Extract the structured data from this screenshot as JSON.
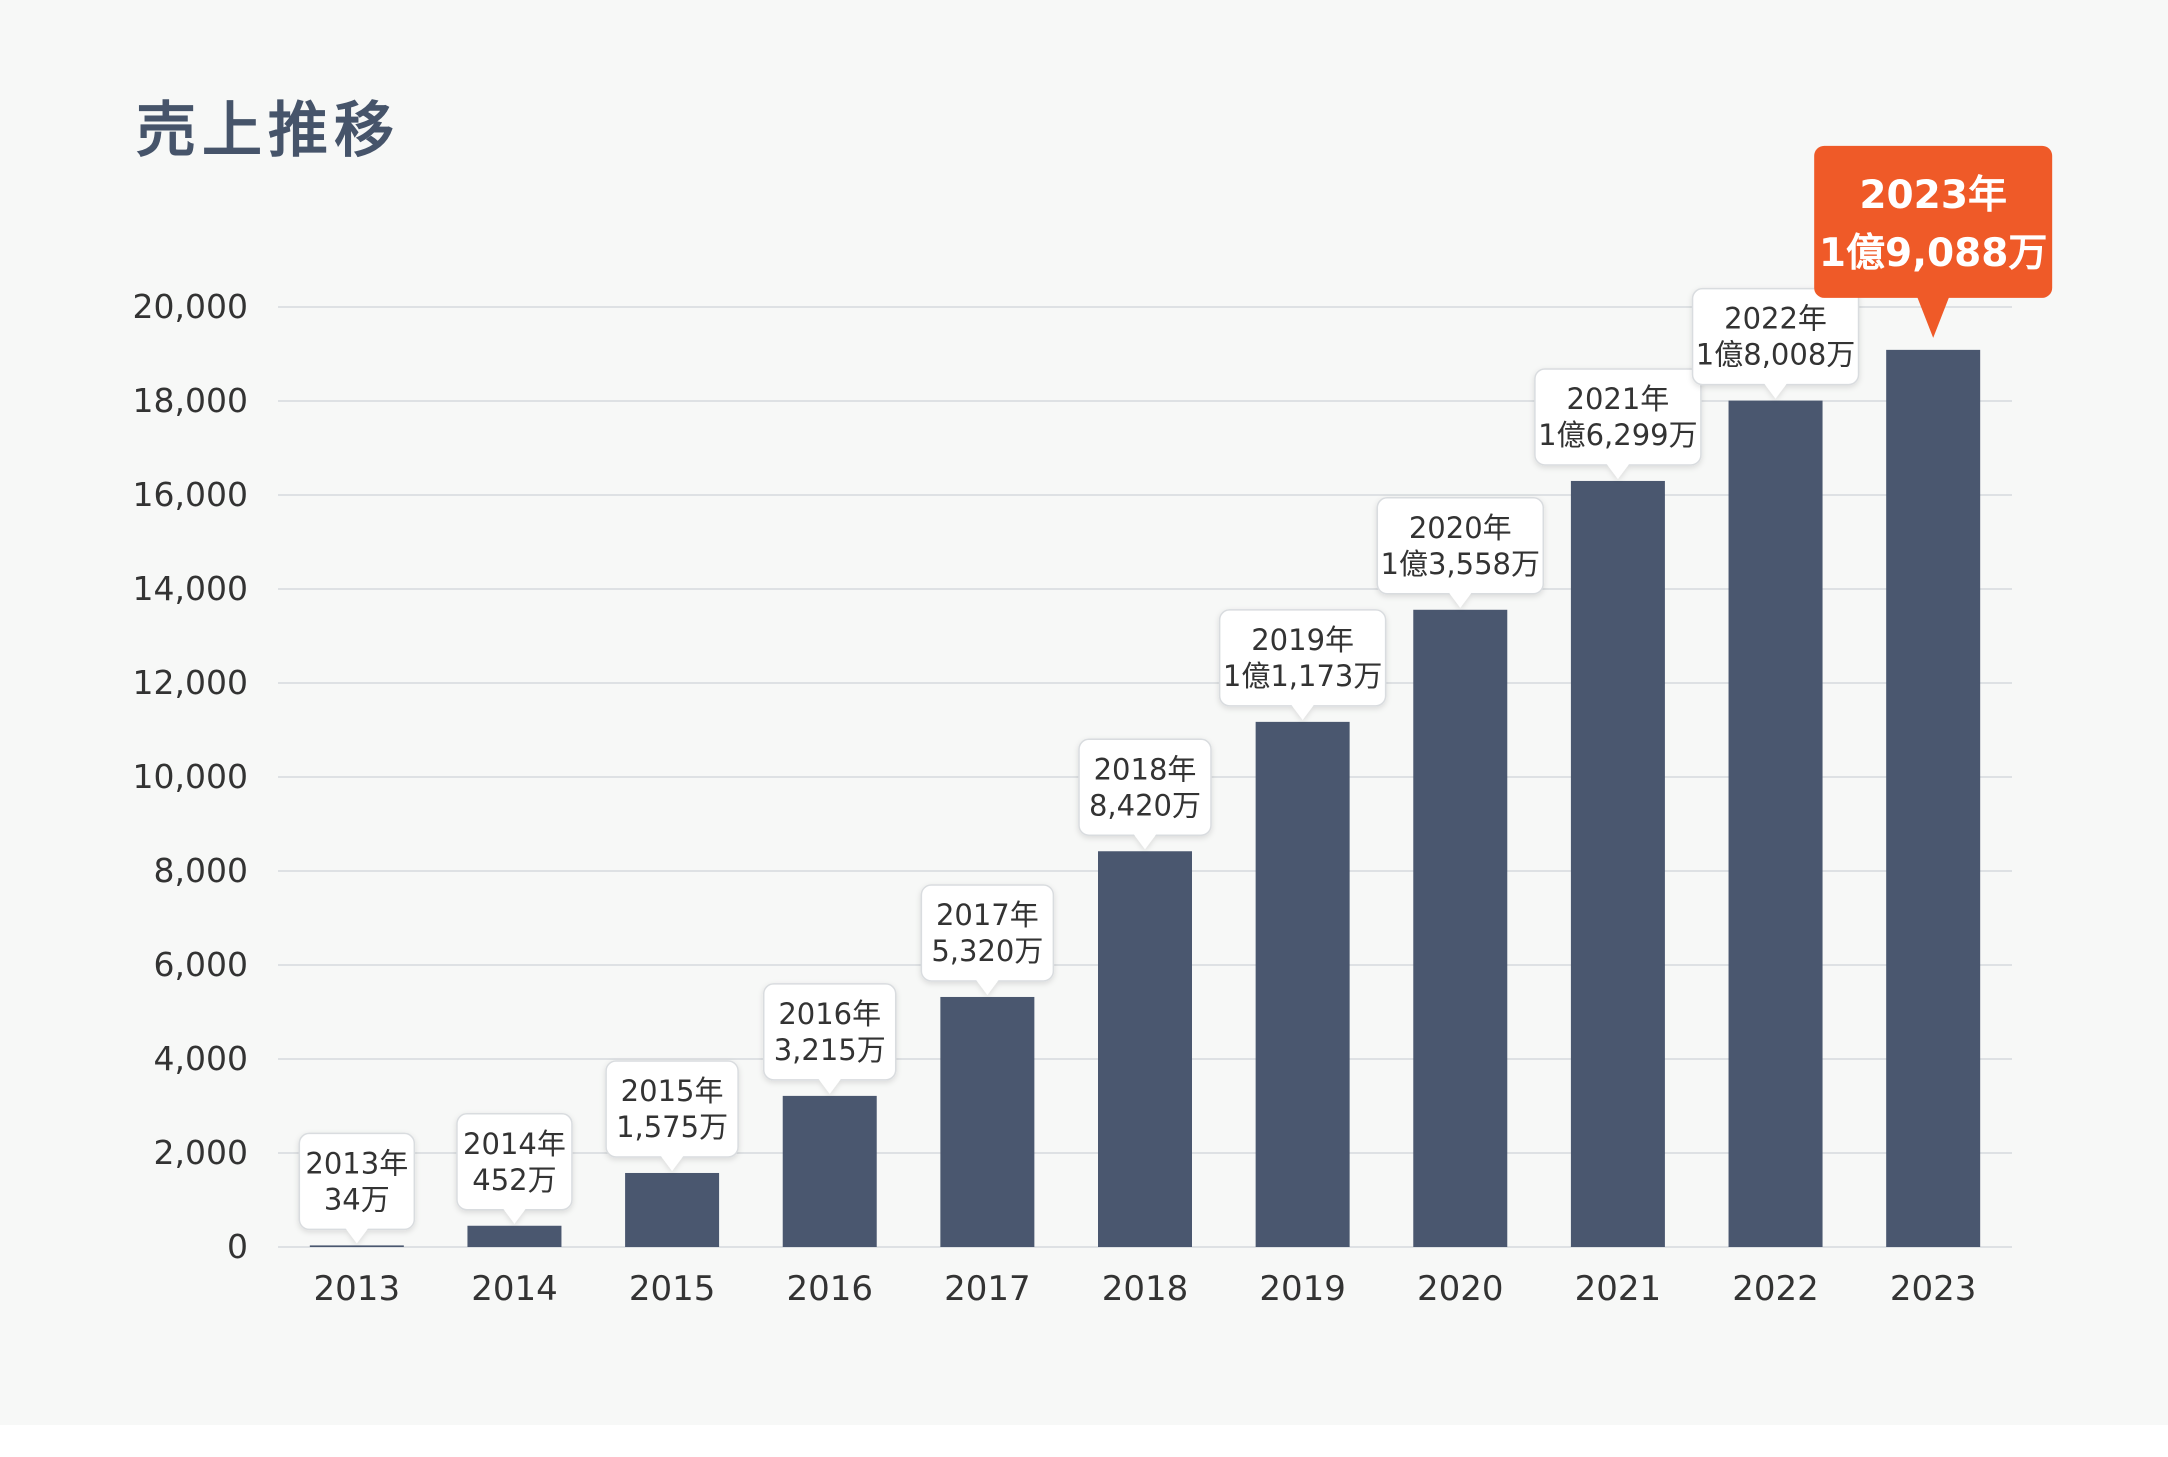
{
  "title": "売上推移",
  "chart_data": {
    "type": "bar",
    "title": "売上推移",
    "xlabel": "",
    "ylabel": "",
    "ylim": [
      0,
      20000
    ],
    "yticks": [
      "0",
      "2,000",
      "4,000",
      "6,000",
      "8,000",
      "10,000",
      "12,000",
      "14,000",
      "16,000",
      "18,000",
      "20,000"
    ],
    "categories": [
      "2013",
      "2014",
      "2015",
      "2016",
      "2017",
      "2018",
      "2019",
      "2020",
      "2021",
      "2022",
      "2023"
    ],
    "values": [
      34,
      452,
      1575,
      3215,
      5320,
      8420,
      11173,
      13558,
      16299,
      18008,
      19088
    ],
    "labels": [
      [
        "2013年",
        "34万"
      ],
      [
        "2014年",
        "452万"
      ],
      [
        "2015年",
        "1,575万"
      ],
      [
        "2016年",
        "3,215万"
      ],
      [
        "2017年",
        "5,320万"
      ],
      [
        "2018年",
        "8,420万"
      ],
      [
        "2019年",
        "1億1,173万"
      ],
      [
        "2020年",
        "1億3,558万"
      ],
      [
        "2021年",
        "1億6,299万"
      ],
      [
        "2022年",
        "1億8,008万"
      ],
      [
        "2023年",
        "1億9,088万"
      ]
    ],
    "highlight_index": 10,
    "colors": {
      "bar": "#4a576f",
      "grid": "#d6d9dd",
      "highlight": "#ef5a28",
      "callout_bg": "#ffffff",
      "callout_border": "#d9dcdf"
    }
  }
}
